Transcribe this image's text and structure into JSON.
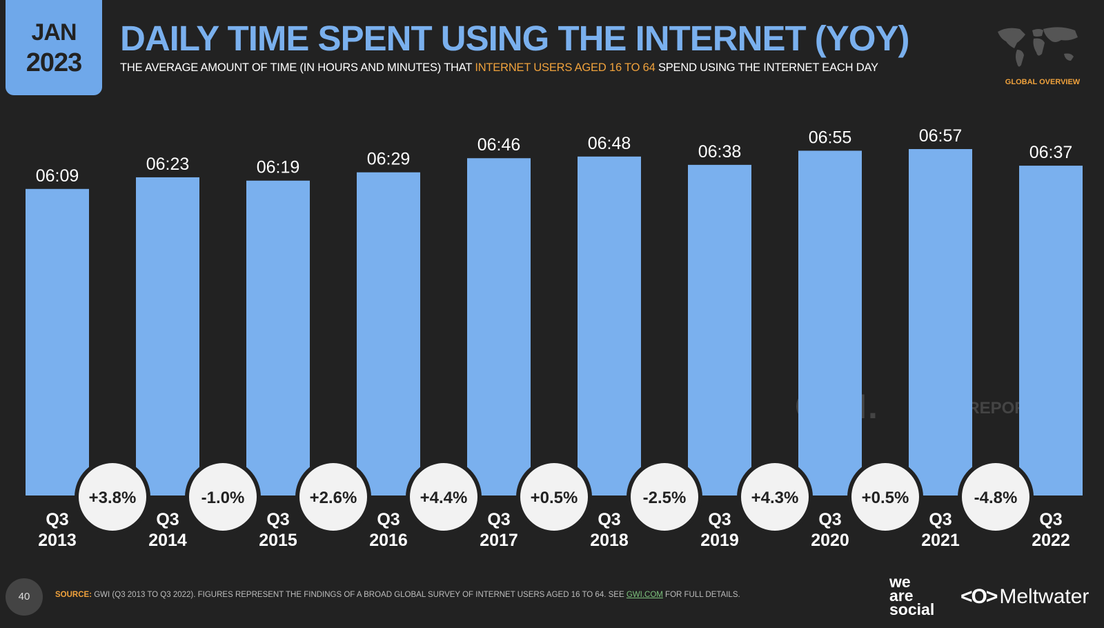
{
  "header": {
    "date_month": "JAN",
    "date_year": "2023",
    "title": "DAILY TIME SPENT USING THE INTERNET (YOY)",
    "subtitle_pre": "THE AVERAGE AMOUNT OF TIME (IN HOURS AND MINUTES) THAT ",
    "subtitle_highlight": "INTERNET USERS AGED 16 TO 64",
    "subtitle_post": " SPEND USING THE INTERNET EACH DAY",
    "region_label": "GLOBAL OVERVIEW"
  },
  "watermarks": {
    "gwi": "GWI.",
    "datareportal": "DATAREPORTAL"
  },
  "footer": {
    "page_number": "40",
    "source_label": "SOURCE:",
    "source_text": " GWI (Q3 2013 TO Q3 2022). FIGURES REPRESENT THE FINDINGS OF A BROAD GLOBAL SURVEY OF INTERNET USERS AGED 16 TO 64. SEE ",
    "source_link": "GWI.COM",
    "source_tail": " FOR FULL DETAILS.",
    "logo_was_1": "we",
    "logo_was_2": "are",
    "logo_was_3": "social",
    "logo_mw_mark": "<O>",
    "logo_mw_text": "Meltwater"
  },
  "colors": {
    "bar": "#7ab0ee",
    "background": "#222222",
    "accent": "#f0a23c",
    "circle": "#f2f2f2"
  },
  "chart_data": {
    "type": "bar",
    "categories": [
      [
        "Q3",
        "2013"
      ],
      [
        "Q3",
        "2014"
      ],
      [
        "Q3",
        "2015"
      ],
      [
        "Q3",
        "2016"
      ],
      [
        "Q3",
        "2017"
      ],
      [
        "Q3",
        "2018"
      ],
      [
        "Q3",
        "2019"
      ],
      [
        "Q3",
        "2020"
      ],
      [
        "Q3",
        "2021"
      ],
      [
        "Q3",
        "2022"
      ]
    ],
    "values": [
      369,
      383,
      379,
      389,
      406,
      408,
      398,
      415,
      417,
      397
    ],
    "value_labels": [
      "06:09",
      "06:23",
      "06:19",
      "06:29",
      "06:46",
      "06:48",
      "06:38",
      "06:55",
      "06:57",
      "06:37"
    ],
    "yoy_changes": [
      "+3.8%",
      "-1.0%",
      "+2.6%",
      "+4.4%",
      "+0.5%",
      "-2.5%",
      "+4.3%",
      "+0.5%",
      "-4.8%"
    ],
    "ylim": [
      0,
      417
    ],
    "grid": false,
    "legend": "none"
  }
}
